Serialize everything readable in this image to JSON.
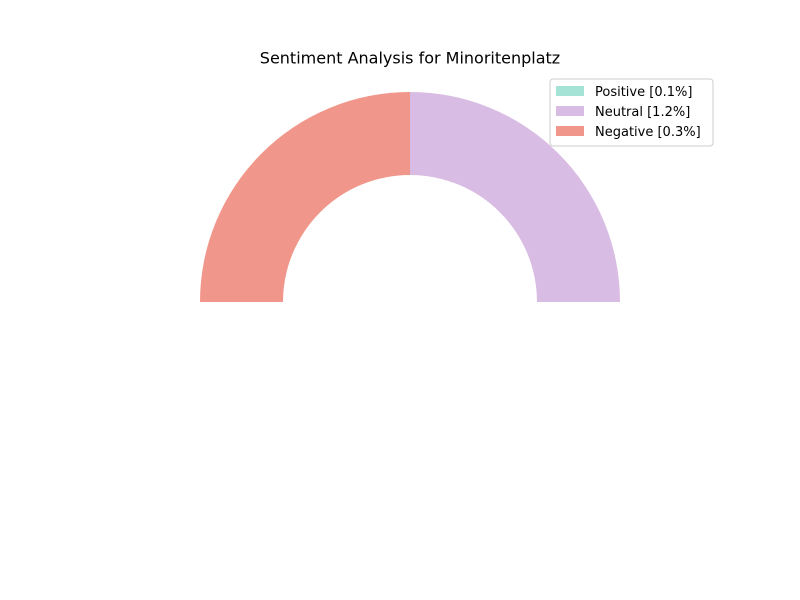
{
  "chart_data": {
    "type": "pie",
    "title": "Sentiment Analysis for Minoritenplatz",
    "slices": [
      {
        "label": "Positive [0.1%]",
        "value": 0.1,
        "color": "#a6e3d7"
      },
      {
        "label": "Neutral [1.2%]",
        "value": 1.2,
        "color": "#d9bce3"
      },
      {
        "label": "Negative [0.3%]",
        "value": 0.3,
        "color": "#f1968a"
      }
    ],
    "legend_position": "top-right"
  }
}
